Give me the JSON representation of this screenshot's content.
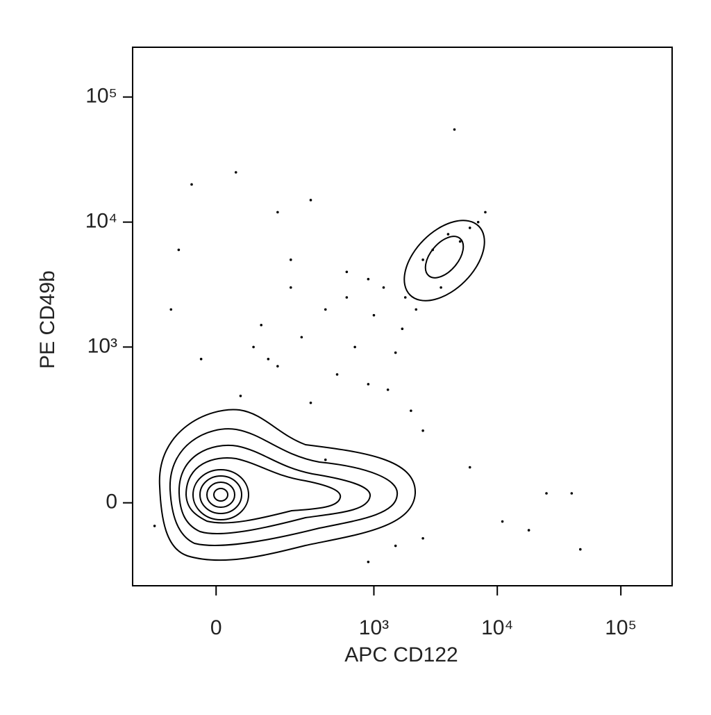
{
  "chart_data": {
    "type": "scatter",
    "x_label": "APC CD122",
    "y_label": "PE CD49b",
    "scale": "biexponential",
    "color": "#000000",
    "xlim": [
      -240,
      260000
    ],
    "ylim": [
      -250,
      250000
    ],
    "xticks": [
      0,
      {
        "value": 1000,
        "label": "10³"
      },
      {
        "value": 10000,
        "label": "10⁴"
      },
      {
        "value": 100000,
        "label": "10⁵"
      }
    ],
    "yticks": [
      0,
      {
        "value": 1000,
        "label": "10³"
      },
      {
        "value": 10000,
        "label": "10⁴"
      },
      {
        "value": 100000,
        "label": "10⁵"
      }
    ],
    "x": [
      -50,
      40,
      150,
      300,
      -80,
      200,
      600,
      900,
      1200,
      1800,
      400,
      100,
      250,
      700,
      1500,
      -30,
      150,
      500,
      900,
      1300,
      50,
      300,
      2000,
      2500,
      600,
      200,
      -100,
      80,
      1000,
      1700,
      3000,
      4000,
      5000,
      6000,
      2500,
      3500,
      7000,
      8000,
      4500,
      2200,
      6000,
      25000,
      40000,
      18000,
      47000,
      11000,
      900,
      1500,
      2500,
      -150,
      400,
      120
    ],
    "values": [
      20000,
      25000,
      12000,
      15000,
      6000,
      5000,
      4000,
      3500,
      3000,
      2500,
      2000,
      1500,
      1200,
      1000,
      900,
      800,
      700,
      600,
      500,
      450,
      400,
      350,
      300,
      200,
      2500,
      3000,
      2000,
      1000,
      1800,
      1400,
      6000,
      8000,
      7000,
      9000,
      5000,
      3000,
      10000,
      12000,
      55000,
      2000,
      80,
      20,
      20,
      -60,
      -110,
      -40,
      -150,
      -100,
      -80,
      -50,
      100,
      800
    ]
  }
}
